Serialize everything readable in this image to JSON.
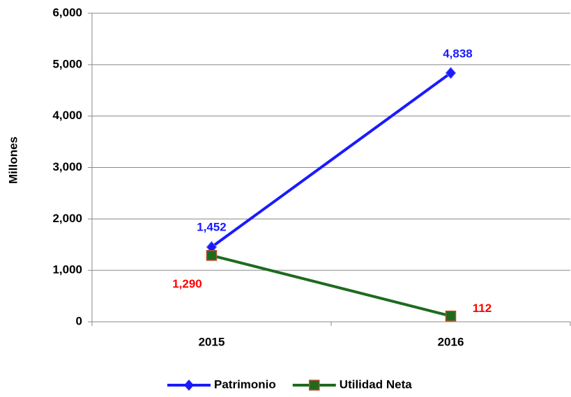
{
  "chart_data": {
    "type": "line",
    "y_label": "Millones",
    "categories": [
      "2015",
      "2016"
    ],
    "series": [
      {
        "name": "Patrimonio",
        "color": "#1a1aff",
        "marker": "diamond",
        "label_color": "#1a1aff",
        "values": [
          1452,
          4838
        ],
        "value_labels": [
          "1,452",
          "4,838"
        ]
      },
      {
        "name": "Utilidad Neta",
        "color": "#1e6b1e",
        "marker": "square",
        "label_color": "#ff0000",
        "values": [
          1290,
          112
        ],
        "value_labels": [
          "1,290",
          "112"
        ]
      }
    ],
    "ylim": [
      0,
      6000
    ],
    "yticks": [
      0,
      {
        "value": 1000,
        "label": "1,000"
      },
      {
        "value": 2000,
        "label": "2,000"
      },
      {
        "value": 3000,
        "label": "3,000"
      },
      {
        "value": 4000,
        "label": "4,000"
      },
      {
        "value": 5000,
        "label": "5,000"
      },
      {
        "value": 6000,
        "label": "6,000"
      }
    ],
    "grid": true,
    "legend": "bottom"
  }
}
